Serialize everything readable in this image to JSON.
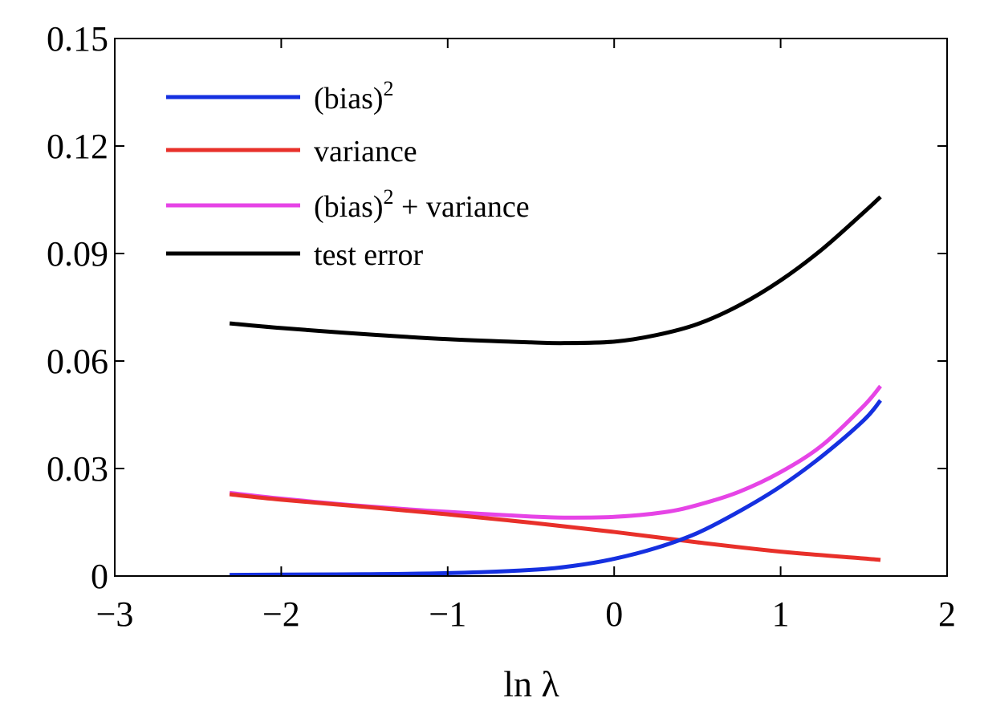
{
  "chart_data": {
    "type": "line",
    "title": "",
    "xlabel": "ln λ",
    "ylabel": "",
    "xlim": [
      -3,
      2
    ],
    "ylim": [
      0,
      0.15
    ],
    "xticks": [
      -3,
      -2,
      -1,
      0,
      1,
      2
    ],
    "xtick_labels": [
      "−3",
      "−2",
      "−1",
      "0",
      "1",
      "2"
    ],
    "yticks": [
      0,
      0.03,
      0.06,
      0.09,
      0.12,
      0.15
    ],
    "ytick_labels": [
      "0",
      "0.03",
      "0.06",
      "0.09",
      "0.12",
      "0.15"
    ],
    "grid": false,
    "legend_position": "top-left",
    "series": [
      {
        "name": "(bias)2 + variance",
        "legend_text": "(bias)",
        "legend_sup": "2",
        "legend_suffix": " + variance",
        "color": "#e644e6",
        "x": [
          -2.31,
          -2.0,
          -1.5,
          -1.0,
          -0.5,
          -0.3,
          0.0,
          0.3,
          0.5,
          0.75,
          1.0,
          1.25,
          1.5,
          1.6
        ],
        "y": [
          0.0232,
          0.0216,
          0.0195,
          0.0179,
          0.0166,
          0.0163,
          0.0165,
          0.0178,
          0.0198,
          0.0235,
          0.029,
          0.0365,
          0.0475,
          0.053
        ]
      },
      {
        "name": "variance",
        "legend_text": "variance",
        "legend_sup": "",
        "legend_suffix": "",
        "color": "#e8302a",
        "x": [
          -2.31,
          -2.0,
          -1.5,
          -1.0,
          -0.5,
          0.0,
          0.5,
          1.0,
          1.5,
          1.6
        ],
        "y": [
          0.0228,
          0.0213,
          0.0193,
          0.0172,
          0.0149,
          0.0123,
          0.0094,
          0.0068,
          0.0049,
          0.0045
        ]
      },
      {
        "name": "(bias)2",
        "legend_text": "(bias)",
        "legend_sup": "2",
        "legend_suffix": "",
        "color": "#1530e0",
        "x": [
          -2.31,
          -2.0,
          -1.5,
          -1.0,
          -0.5,
          -0.25,
          0.0,
          0.25,
          0.5,
          0.75,
          1.0,
          1.25,
          1.5,
          1.6
        ],
        "y": [
          0.0003,
          0.0004,
          0.0005,
          0.0008,
          0.0017,
          0.0028,
          0.0048,
          0.0078,
          0.012,
          0.018,
          0.025,
          0.0335,
          0.0435,
          0.049
        ]
      },
      {
        "name": "test error",
        "legend_text": "test error",
        "legend_sup": "",
        "legend_suffix": "",
        "color": "#000000",
        "x": [
          -2.31,
          -2.0,
          -1.5,
          -1.0,
          -0.5,
          -0.3,
          0.0,
          0.25,
          0.5,
          0.75,
          1.0,
          1.25,
          1.5,
          1.6
        ],
        "y": [
          0.0705,
          0.0692,
          0.0675,
          0.0661,
          0.0652,
          0.065,
          0.0654,
          0.0672,
          0.0703,
          0.0755,
          0.0825,
          0.0912,
          0.1015,
          0.1058
        ]
      }
    ],
    "legend_order": [
      "(bias)2",
      "variance",
      "(bias)2 + variance",
      "test error"
    ]
  }
}
